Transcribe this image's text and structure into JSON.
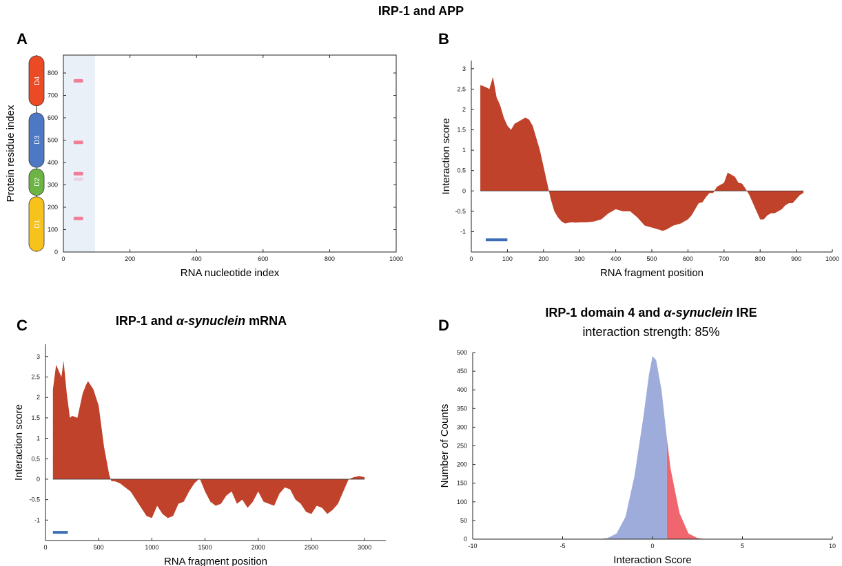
{
  "figure_title": "IRP-1 and APP",
  "panels": {
    "A": {
      "letter": "A",
      "domains": [
        "D1",
        "D2",
        "D3",
        "D4"
      ],
      "colors": {
        "D1": "#f8c21c",
        "D2": "#6cb443",
        "D3": "#4c78c4",
        "D4": "#ec4a24",
        "highlight": "#e9f0f8",
        "hit": "#f26a86"
      }
    },
    "B": {
      "letter": "B"
    },
    "C": {
      "letter": "C",
      "title_pre": "IRP-1 and ",
      "title_ital": "α-synuclein",
      "title_post": " mRNA"
    },
    "D": {
      "letter": "D",
      "title_pre": "IRP-1 domain 4 and ",
      "title_ital": "α-synuclein",
      "title_post": " IRE",
      "subtitle": "interaction strength: 85%"
    }
  },
  "chart_data": [
    {
      "id": "A",
      "type": "heatmap",
      "xlabel": "RNA nucleotide index",
      "ylabel": "Protein residue index",
      "xlim": [
        0,
        1000
      ],
      "ylim": [
        0,
        880
      ],
      "xticks": [
        "0",
        "200",
        "400",
        "600",
        "800",
        "1000"
      ],
      "yticks": [
        "0",
        "100",
        "200",
        "300",
        "400",
        "500",
        "600",
        "700",
        "800"
      ],
      "highlight_region": [
        0,
        95
      ],
      "domains": [
        {
          "name": "D1",
          "start": 0,
          "end": 250
        },
        {
          "name": "D2",
          "start": 250,
          "end": 375
        },
        {
          "name": "D3",
          "start": 375,
          "end": 625
        },
        {
          "name": "D4",
          "start": 650,
          "end": 880
        }
      ],
      "hits": [
        {
          "x": 45,
          "y": 150,
          "strength": 1.0
        },
        {
          "x": 45,
          "y": 350,
          "strength": 1.0
        },
        {
          "x": 45,
          "y": 325,
          "strength": 0.25
        },
        {
          "x": 45,
          "y": 490,
          "strength": 1.0
        },
        {
          "x": 45,
          "y": 765,
          "strength": 1.0
        }
      ]
    },
    {
      "id": "B",
      "type": "area",
      "xlabel": "RNA fragment position",
      "ylabel": "Interaction score",
      "xlim": [
        0,
        1000
      ],
      "ylim": [
        -1.5,
        3.2
      ],
      "xticks": [
        "0",
        "100",
        "200",
        "300",
        "400",
        "500",
        "600",
        "700",
        "800",
        "900",
        "1000"
      ],
      "yticks": [
        "-1",
        "-0.5",
        "0",
        "0.5",
        "1",
        "1.5",
        "2",
        "2.5",
        "3"
      ],
      "fill": "#c0422a",
      "marker_bar": {
        "x": [
          40,
          100
        ],
        "y": -1.2,
        "color": "#3c6db5"
      },
      "x": [
        25,
        40,
        50,
        60,
        70,
        80,
        90,
        100,
        110,
        120,
        130,
        140,
        150,
        160,
        170,
        180,
        190,
        200,
        210,
        220,
        230,
        240,
        250,
        260,
        270,
        280,
        290,
        300,
        320,
        340,
        360,
        380,
        390,
        400,
        420,
        440,
        460,
        480,
        500,
        520,
        530,
        540,
        560,
        580,
        600,
        610,
        620,
        630,
        640,
        650,
        660,
        670,
        680,
        690,
        700,
        710,
        720,
        730,
        740,
        750,
        760,
        770,
        780,
        790,
        800,
        810,
        820,
        830,
        840,
        850,
        860,
        870,
        880,
        890,
        900,
        910,
        920
      ],
      "values": [
        2.6,
        2.55,
        2.5,
        2.8,
        2.3,
        2.1,
        1.8,
        1.6,
        1.5,
        1.65,
        1.7,
        1.75,
        1.8,
        1.75,
        1.6,
        1.3,
        1.0,
        0.6,
        0.2,
        -0.2,
        -0.5,
        -0.65,
        -0.75,
        -0.8,
        -0.78,
        -0.77,
        -0.78,
        -0.77,
        -0.77,
        -0.75,
        -0.7,
        -0.55,
        -0.5,
        -0.45,
        -0.5,
        -0.5,
        -0.65,
        -0.85,
        -0.9,
        -0.95,
        -0.98,
        -0.95,
        -0.85,
        -0.8,
        -0.7,
        -0.6,
        -0.45,
        -0.3,
        -0.28,
        -0.15,
        -0.05,
        -0.05,
        0.1,
        0.15,
        0.2,
        0.45,
        0.4,
        0.35,
        0.2,
        0.18,
        0.05,
        -0.1,
        -0.3,
        -0.5,
        -0.7,
        -0.7,
        -0.6,
        -0.55,
        -0.55,
        -0.5,
        -0.45,
        -0.35,
        -0.3,
        -0.3,
        -0.2,
        -0.1,
        -0.05
      ]
    },
    {
      "id": "C",
      "type": "area",
      "xlabel": "RNA fragment position",
      "ylabel": "Interaction score",
      "xlim": [
        0,
        3200
      ],
      "ylim": [
        -1.5,
        3.3
      ],
      "xticks": [
        "0",
        "500",
        "1000",
        "1500",
        "2000",
        "2500",
        "3000"
      ],
      "yticks": [
        "-1",
        "-0.5",
        "0",
        "0.5",
        "1",
        "1.5",
        "2",
        "2.5",
        "3"
      ],
      "fill": "#c0422a",
      "marker_bar": {
        "x": [
          70,
          210
        ],
        "y": -1.3,
        "color": "#3c6db5"
      },
      "x": [
        70,
        100,
        150,
        170,
        200,
        230,
        250,
        300,
        350,
        380,
        400,
        450,
        500,
        550,
        600,
        620,
        650,
        700,
        750,
        800,
        850,
        900,
        950,
        1000,
        1050,
        1100,
        1150,
        1200,
        1250,
        1300,
        1350,
        1400,
        1450,
        1500,
        1550,
        1600,
        1650,
        1700,
        1750,
        1800,
        1850,
        1900,
        1950,
        2000,
        2050,
        2100,
        2150,
        2200,
        2250,
        2300,
        2350,
        2400,
        2450,
        2500,
        2550,
        2600,
        2650,
        2700,
        2750,
        2800,
        2850,
        2900,
        2950,
        3000
      ],
      "values": [
        2.2,
        2.8,
        2.5,
        2.9,
        2.1,
        1.5,
        1.55,
        1.5,
        2.1,
        2.3,
        2.4,
        2.2,
        1.8,
        0.8,
        0.1,
        -0.05,
        -0.05,
        -0.1,
        -0.2,
        -0.3,
        -0.5,
        -0.7,
        -0.9,
        -0.95,
        -0.65,
        -0.85,
        -0.95,
        -0.9,
        -0.6,
        -0.55,
        -0.3,
        -0.1,
        0.02,
        -0.3,
        -0.55,
        -0.65,
        -0.6,
        -0.4,
        -0.3,
        -0.6,
        -0.5,
        -0.7,
        -0.55,
        -0.3,
        -0.55,
        -0.6,
        -0.65,
        -0.35,
        -0.2,
        -0.25,
        -0.5,
        -0.6,
        -0.8,
        -0.85,
        -0.65,
        -0.7,
        -0.85,
        -0.75,
        -0.6,
        -0.3,
        0.0,
        0.05,
        0.08,
        0.05
      ]
    },
    {
      "id": "D",
      "type": "area",
      "xlabel": "Interaction Score",
      "ylabel": "Number of Counts",
      "xlim": [
        -10,
        10
      ],
      "ylim": [
        0,
        500
      ],
      "xticks": [
        "-10",
        "-5",
        "0",
        "5",
        "10"
      ],
      "yticks": [
        "0",
        "50",
        "100",
        "150",
        "200",
        "250",
        "300",
        "350",
        "400",
        "450",
        "500"
      ],
      "threshold": 0.8,
      "series": [
        {
          "color": "#9dacdb",
          "region": "below_threshold"
        },
        {
          "color": "#f0666e",
          "region": "above_threshold"
        }
      ],
      "x": [
        -3.0,
        -2.5,
        -2.0,
        -1.5,
        -1.0,
        -0.5,
        -0.2,
        0.0,
        0.2,
        0.5,
        0.8,
        1.0,
        1.5,
        2.0,
        2.5,
        3.0
      ],
      "values": [
        0,
        3,
        15,
        60,
        170,
        330,
        440,
        490,
        480,
        400,
        270,
        190,
        70,
        15,
        3,
        0
      ]
    }
  ]
}
